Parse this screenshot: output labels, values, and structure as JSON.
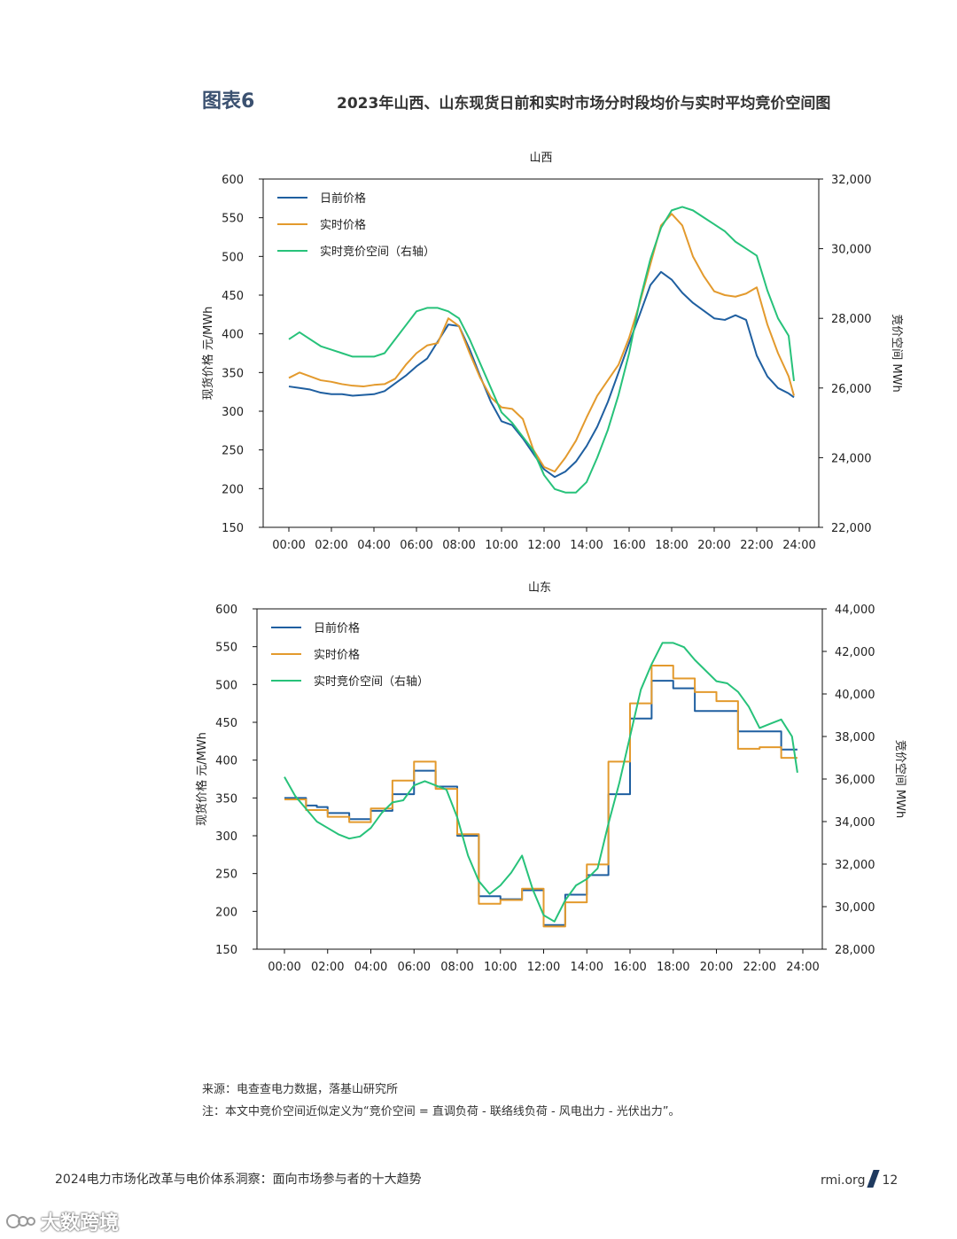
{
  "header": {
    "figure_label": "图表6",
    "figure_title": "2023年山西、山东现货日前和实时市场分时段均价与实时平均竞价空间图"
  },
  "legend": {
    "day_ahead": "日前价格",
    "real_time": "实时价格",
    "bidding_space": "实时竞价空间（右轴）"
  },
  "colors": {
    "day_ahead": "#1f5fa0",
    "real_time": "#e39a2d",
    "bidding_space": "#27c27a"
  },
  "chart_data": [
    {
      "type": "line",
      "title": "山西",
      "ylabel": "现货价格 元/MWh",
      "y2label": "竞价空间 MWh",
      "ylim": [
        150,
        600
      ],
      "y2lim": [
        22000,
        32000
      ],
      "yticks": [
        "600",
        "550",
        "500",
        "450",
        "400",
        "350",
        "300",
        "250",
        "200",
        "150"
      ],
      "y2ticks": [
        "32,000",
        "30,000",
        "28,000",
        "26,000",
        "24,000",
        "22,000"
      ],
      "xticks": [
        "00:00",
        "02:00",
        "04:00",
        "06:00",
        "08:00",
        "10:00",
        "12:00",
        "14:00",
        "16:00",
        "18:00",
        "20:00",
        "22:00",
        "24:00"
      ],
      "x_hours": [
        0,
        0.5,
        1,
        1.5,
        2,
        2.5,
        3,
        3.5,
        4,
        4.5,
        5,
        5.5,
        6,
        6.5,
        7,
        7.5,
        8,
        8.5,
        9,
        9.5,
        10,
        10.5,
        11,
        11.5,
        12,
        12.5,
        13,
        13.5,
        14,
        14.5,
        15,
        15.5,
        16,
        16.5,
        17,
        17.5,
        18,
        18.5,
        19,
        19.5,
        20,
        20.5,
        21,
        21.5,
        22,
        22.5,
        23,
        23.5,
        23.75
      ],
      "series": [
        {
          "name": "日前价格",
          "axis": "left",
          "values": [
            332,
            330,
            328,
            324,
            322,
            322,
            320,
            321,
            322,
            326,
            336,
            346,
            358,
            368,
            390,
            412,
            410,
            380,
            345,
            312,
            287,
            282,
            265,
            245,
            225,
            215,
            222,
            235,
            255,
            280,
            312,
            350,
            388,
            425,
            463,
            480,
            470,
            453,
            440,
            430,
            420,
            418,
            424,
            418,
            372,
            345,
            330,
            323,
            318
          ]
        },
        {
          "name": "实时价格",
          "axis": "left",
          "values": [
            343,
            350,
            345,
            340,
            338,
            335,
            333,
            332,
            334,
            335,
            342,
            360,
            375,
            385,
            388,
            420,
            410,
            375,
            343,
            318,
            305,
            303,
            290,
            250,
            228,
            222,
            240,
            262,
            292,
            320,
            340,
            360,
            395,
            440,
            490,
            540,
            555,
            540,
            500,
            475,
            455,
            450,
            448,
            452,
            460,
            412,
            375,
            345,
            320
          ]
        },
        {
          "name": "实时竞价空间（右轴）",
          "axis": "right",
          "values": [
            27400,
            27600,
            27400,
            27200,
            27100,
            27000,
            26900,
            26900,
            26900,
            27000,
            27400,
            27800,
            28200,
            28300,
            28300,
            28200,
            28000,
            27400,
            26700,
            26000,
            25300,
            25000,
            24600,
            24200,
            23500,
            23100,
            23000,
            23000,
            23300,
            24000,
            24800,
            25800,
            27000,
            28500,
            29700,
            30600,
            31100,
            31200,
            31100,
            30900,
            30700,
            30500,
            30200,
            30000,
            29800,
            28800,
            28000,
            27500,
            26200
          ]
        }
      ]
    },
    {
      "type": "line",
      "title": "山东",
      "ylabel": "现货价格 元/MWh",
      "y2label": "竞价空间 MWh",
      "ylim": [
        150,
        600
      ],
      "y2lim": [
        28000,
        44000
      ],
      "yticks": [
        "600",
        "550",
        "500",
        "450",
        "400",
        "350",
        "300",
        "250",
        "200",
        "150"
      ],
      "y2ticks": [
        "44,000",
        "42,000",
        "40,000",
        "38,000",
        "36,000",
        "34,000",
        "32,000",
        "30,000",
        "28,000"
      ],
      "xticks": [
        "00:00",
        "02:00",
        "04:00",
        "06:00",
        "08:00",
        "10:00",
        "12:00",
        "14:00",
        "16:00",
        "18:00",
        "20:00",
        "22:00",
        "24:00"
      ],
      "x_hours": [
        0,
        0.5,
        1,
        1.5,
        2,
        2.5,
        3,
        3.5,
        4,
        4.5,
        5,
        5.5,
        6,
        6.5,
        7,
        7.5,
        8,
        8.5,
        9,
        9.5,
        10,
        10.5,
        11,
        11.5,
        12,
        12.5,
        13,
        13.5,
        14,
        14.5,
        15,
        15.5,
        16,
        16.5,
        17,
        17.5,
        18,
        18.5,
        19,
        19.5,
        20,
        20.5,
        21,
        21.5,
        22,
        22.5,
        23,
        23.5,
        23.75
      ],
      "series": [
        {
          "name": "日前价格",
          "axis": "left",
          "step": true,
          "values": [
            350,
            350,
            340,
            338,
            330,
            330,
            322,
            322,
            333,
            333,
            355,
            355,
            386,
            386,
            365,
            365,
            300,
            300,
            220,
            220,
            216,
            216,
            228,
            228,
            182,
            182,
            222,
            222,
            248,
            248,
            355,
            355,
            455,
            455,
            505,
            505,
            495,
            495,
            465,
            465,
            465,
            465,
            438,
            438,
            438,
            438,
            414,
            414,
            414
          ]
        },
        {
          "name": "实时价格",
          "axis": "left",
          "step": true,
          "values": [
            348,
            348,
            334,
            334,
            325,
            325,
            318,
            318,
            336,
            336,
            373,
            373,
            398,
            398,
            362,
            362,
            302,
            302,
            210,
            210,
            215,
            215,
            230,
            230,
            180,
            180,
            212,
            212,
            262,
            262,
            398,
            398,
            475,
            475,
            525,
            525,
            508,
            508,
            490,
            490,
            478,
            478,
            415,
            415,
            417,
            417,
            403,
            403,
            403
          ]
        },
        {
          "name": "实时竞价空间（右轴）",
          "axis": "right",
          "values": [
            36100,
            35200,
            34600,
            34000,
            33700,
            33400,
            33200,
            33300,
            33700,
            34400,
            34900,
            35000,
            35700,
            35900,
            35700,
            35500,
            34200,
            32400,
            31200,
            30600,
            31000,
            31600,
            32400,
            30800,
            29600,
            29300,
            30300,
            31000,
            31300,
            31800,
            33900,
            35800,
            38000,
            40200,
            41400,
            42400,
            42400,
            42200,
            41600,
            41100,
            40600,
            40500,
            40100,
            39400,
            38400,
            38600,
            38800,
            38000,
            36300
          ]
        }
      ]
    }
  ],
  "source": {
    "source_line": "来源：电查查电力数据，落基山研究所",
    "note_line": "注：本文中竞价空间近似定义为“竞价空间 = 直调负荷 - 联络线负荷 - 风电出力 - 光伏出力”。"
  },
  "footer": {
    "report_title": "2024电力市场化改革与电价体系洞察：面向市场参与者的十大趋势",
    "site": "rmi.org",
    "page_number": "12"
  },
  "watermark": {
    "text": "大数跨境"
  }
}
